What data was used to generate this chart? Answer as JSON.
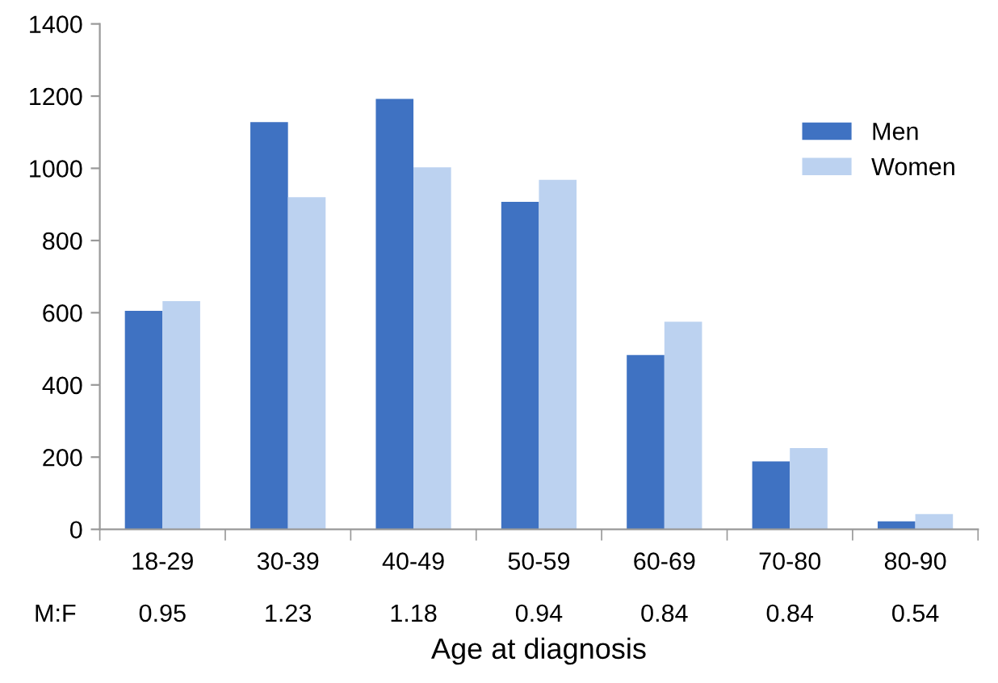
{
  "chart_data": {
    "type": "bar",
    "xlabel": "Age at diagnosis",
    "categories": [
      "18-29",
      "30-39",
      "40-49",
      "50-59",
      "60-69",
      "70-80",
      "80-90"
    ],
    "series": [
      {
        "name": "Men",
        "color": "#3f72c2",
        "values": [
          605,
          1128,
          1192,
          907,
          483,
          188,
          22
        ]
      },
      {
        "name": "Women",
        "color": "#bcd2f0",
        "values": [
          632,
          920,
          1003,
          968,
          575,
          225,
          42
        ]
      }
    ],
    "ylim": [
      0,
      1400
    ],
    "yticks": [
      0,
      200,
      400,
      600,
      800,
      1000,
      1200,
      1400
    ],
    "grid": false,
    "legend": "top right",
    "annotations": [
      "M:F",
      "0.95",
      "1.23",
      "1.18",
      "0.94",
      "0.84",
      "0.84",
      "0.54"
    ]
  }
}
